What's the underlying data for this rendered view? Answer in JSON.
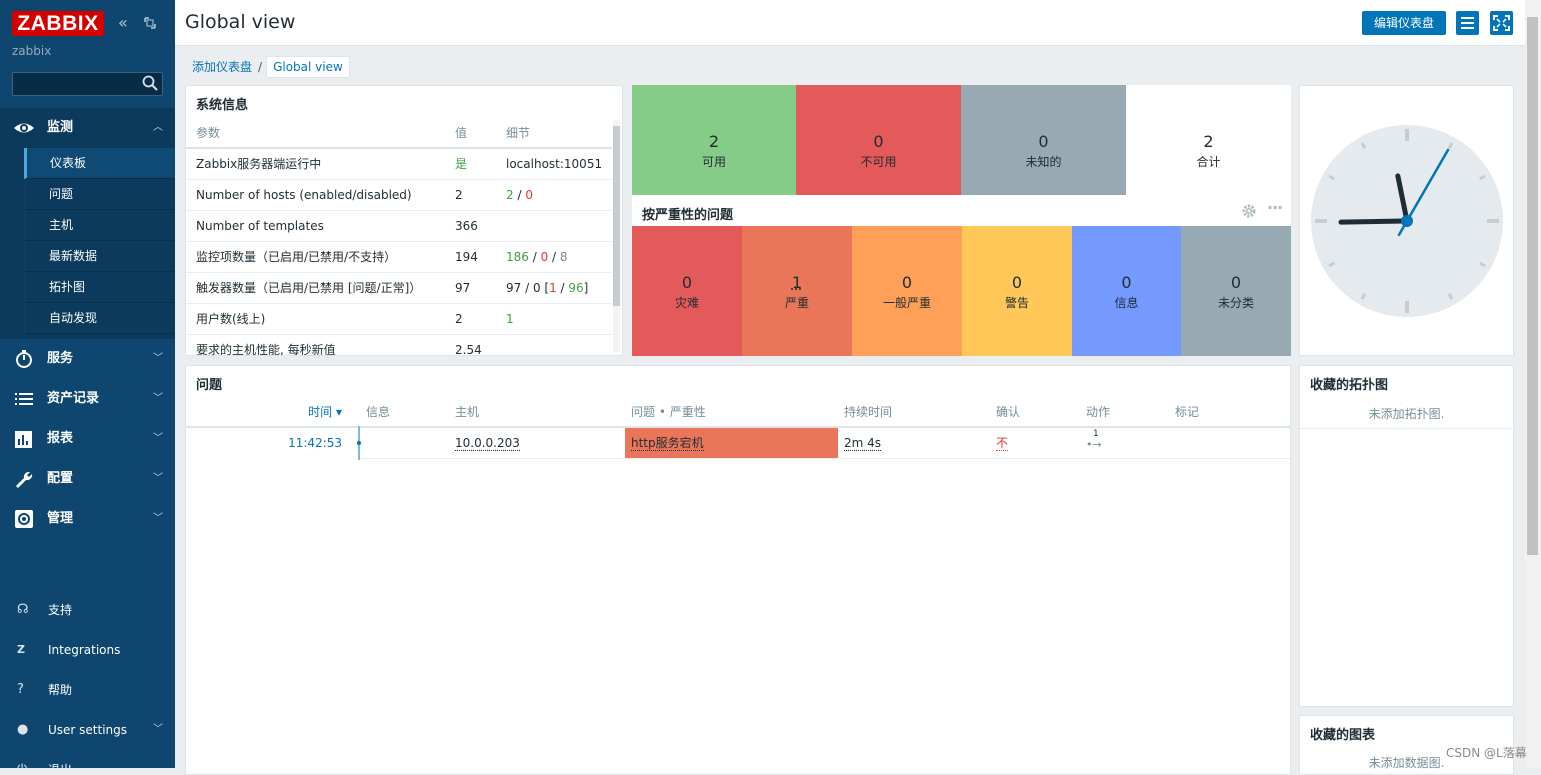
{
  "sidebar": {
    "logo": "ZABBIX",
    "server_name": "zabbix",
    "search_placeholder": "",
    "menu": [
      {
        "label": "监测",
        "icon": "eye-icon"
      },
      {
        "label": "服务",
        "icon": "clock-icon"
      },
      {
        "label": "资产记录",
        "icon": "list-icon"
      },
      {
        "label": "报表",
        "icon": "bar-chart-icon"
      },
      {
        "label": "配置",
        "icon": "wrench-icon"
      },
      {
        "label": "管理",
        "icon": "gear-icon"
      }
    ],
    "submenu": [
      "仪表板",
      "问题",
      "主机",
      "最新数据",
      "拓扑图",
      "自动发现"
    ],
    "bottom": [
      {
        "label": "支持",
        "icon": "headset-icon"
      },
      {
        "label": "Integrations",
        "icon": "zabbix-z-icon"
      },
      {
        "label": "帮助",
        "icon": "question-icon"
      },
      {
        "label": "User settings",
        "icon": "user-icon"
      },
      {
        "label": "退出",
        "icon": "power-icon"
      }
    ]
  },
  "header": {
    "title": "Global view",
    "edit_button": "编辑仪表盘"
  },
  "breadcrumb": {
    "parent": "添加仪表盘",
    "current": "Global view"
  },
  "system_info": {
    "title": "系统信息",
    "headers": [
      "参数",
      "值",
      "细节"
    ],
    "rows": [
      {
        "param": "Zabbix服务器端运行中",
        "value": "是",
        "detail": "localhost:10051"
      },
      {
        "param": "Number of hosts (enabled/disabled)",
        "value": "2",
        "d1": "2",
        "d2": "0"
      },
      {
        "param": "Number of templates",
        "value": "366"
      },
      {
        "param": "监控项数量（已启用/已禁用/不支持）",
        "value": "194",
        "d1": "186",
        "d2": "0",
        "d3": "8"
      },
      {
        "param": "触发器数量（已启用/已禁用 [问题/正常]）",
        "value": "97",
        "d0": "97 / 0 [",
        "d1": "1",
        "d2": "96",
        "d3": "]"
      },
      {
        "param": "用户数(线上)",
        "value": "2",
        "d1": "1"
      },
      {
        "param": "要求的主机性能, 每秒新值",
        "value": "2.54"
      }
    ]
  },
  "host_availability": {
    "tiles": [
      {
        "count": "2",
        "label": "可用",
        "color": "#86cc89"
      },
      {
        "count": "0",
        "label": "不可用",
        "color": "#e45959"
      },
      {
        "count": "0",
        "label": "未知的",
        "color": "#97aab3"
      },
      {
        "count": "2",
        "label": "合计",
        "color": "#ffffff"
      }
    ]
  },
  "severity": {
    "title": "按严重性的问题",
    "tiles": [
      {
        "count": "0",
        "label": "灾难",
        "color": "#e45959"
      },
      {
        "count": "1",
        "label": "严重",
        "color": "#e97659"
      },
      {
        "count": "0",
        "label": "一般严重",
        "color": "#ffa059"
      },
      {
        "count": "0",
        "label": "警告",
        "color": "#ffc859"
      },
      {
        "count": "0",
        "label": "信息",
        "color": "#7499ff"
      },
      {
        "count": "0",
        "label": "未分类",
        "color": "#97aab3"
      }
    ]
  },
  "problems": {
    "title": "问题",
    "headers": [
      "时间 ▾",
      "信息",
      "主机",
      "问题 • 严重性",
      "持续时间",
      "确认",
      "动作",
      "标记"
    ],
    "rows": [
      {
        "time": "11:42:53",
        "info": "",
        "host": "10.0.0.203",
        "problem": "http服务宕机",
        "duration": "2m 4s",
        "ack": "不",
        "action": "1",
        "tags": ""
      }
    ]
  },
  "fav_maps": {
    "title": "收藏的拓扑图",
    "empty": "未添加拓扑图."
  },
  "fav_graphs": {
    "title": "收藏的图表",
    "empty": "未添加数据图."
  },
  "clock": {
    "time": "8:58:05"
  },
  "watermark": "CSDN @L落幕"
}
